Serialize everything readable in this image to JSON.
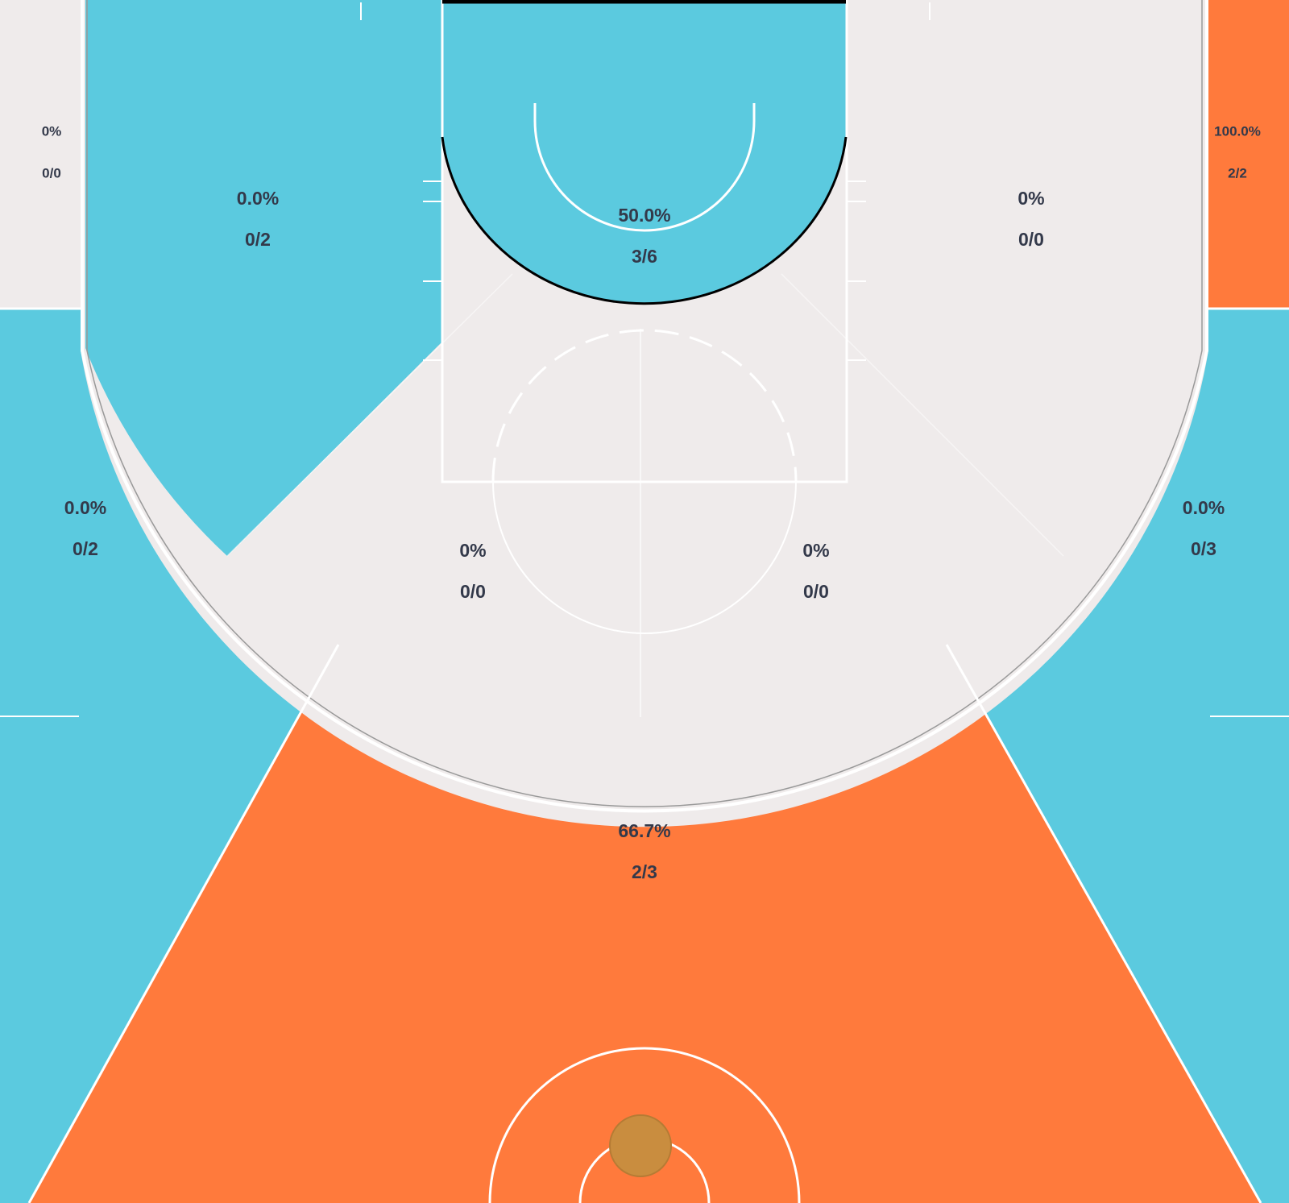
{
  "colors": {
    "cold": "#5bcadf",
    "hot": "#ff7a3c",
    "neutral": "#efebeb",
    "label": "#33394a",
    "lines": "#ffffff",
    "ball": "#c98d3f",
    "background": "#000000"
  },
  "chart_data": {
    "type": "shot-zone chart",
    "zones": [
      {
        "id": "corner-left",
        "pct": "0%",
        "made_attempts": "0/0",
        "color": "neutral"
      },
      {
        "id": "corner-right",
        "pct": "100.0%",
        "made_attempts": "2/2",
        "color": "hot"
      },
      {
        "id": "wing-left",
        "pct": "0.0%",
        "made_attempts": "0/2",
        "color": "cold"
      },
      {
        "id": "wing-right",
        "pct": "0%",
        "made_attempts": "0/0",
        "color": "neutral"
      },
      {
        "id": "restricted-area",
        "pct": "50.0%",
        "made_attempts": "3/6",
        "color": "cold"
      },
      {
        "id": "above-break-left",
        "pct": "0.0%",
        "made_attempts": "0/2",
        "color": "cold"
      },
      {
        "id": "above-break-right",
        "pct": "0.0%",
        "made_attempts": "0/3",
        "color": "cold"
      },
      {
        "id": "mid-left",
        "pct": "0%",
        "made_attempts": "0/0",
        "color": "neutral"
      },
      {
        "id": "mid-right",
        "pct": "0%",
        "made_attempts": "0/0",
        "color": "neutral"
      },
      {
        "id": "deep-center",
        "pct": "66.7%",
        "made_attempts": "2/3",
        "color": "hot"
      }
    ]
  }
}
